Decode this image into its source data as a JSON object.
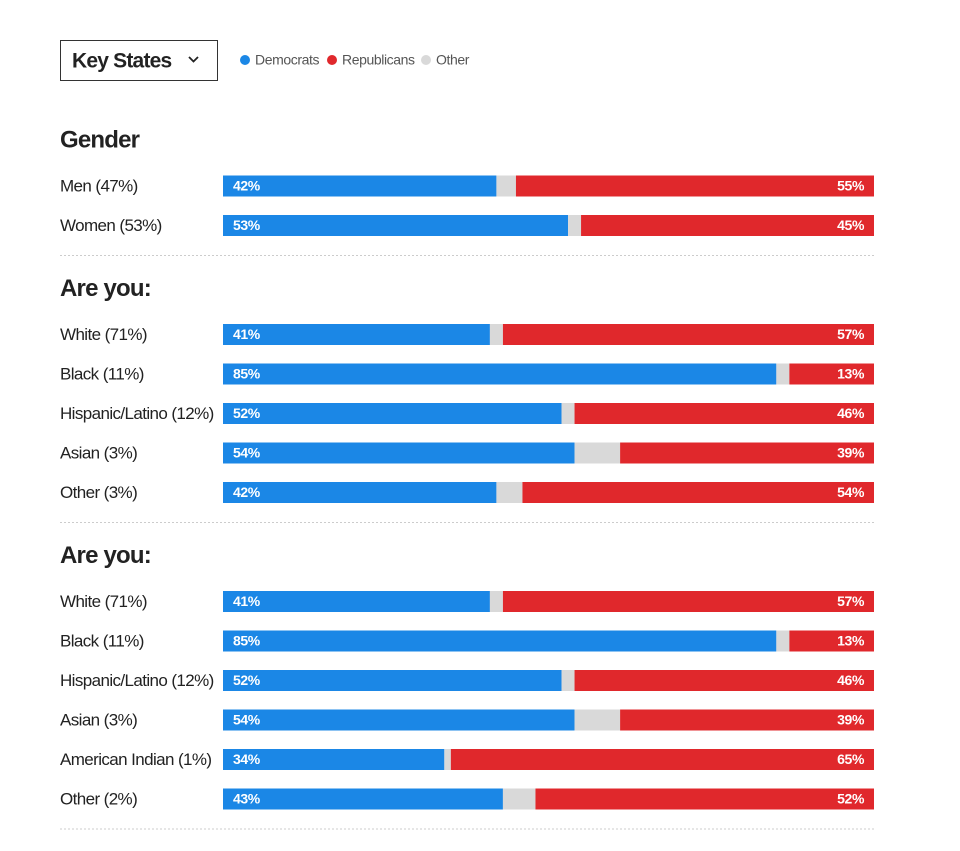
{
  "dropdown": "Key States",
  "chart_data": [
    {
      "type": "stacked-bar",
      "title": "Gender",
      "xlim": [
        0,
        100
      ],
      "categories": [
        "Men (47%)",
        "Women (53%)"
      ],
      "series": [
        {
          "name": "Democrats",
          "color": "#1b87e6",
          "values": [
            42,
            53
          ],
          "value_labels": [
            "42%",
            "53%"
          ]
        },
        {
          "name": "Republicans",
          "color": "#e0282c",
          "values": [
            55,
            45
          ],
          "value_labels": [
            "55%",
            "45%"
          ]
        },
        {
          "name": "Other",
          "color": "#d9d9d9",
          "values": [
            3,
            2
          ]
        }
      ]
    },
    {
      "type": "stacked-bar",
      "title": "Are you:",
      "xlim": [
        0,
        100
      ],
      "categories": [
        "White (71%)",
        "Black (11%)",
        "Hispanic/Latino (12%)",
        "Asian (3%)",
        "Other (3%)"
      ],
      "series": [
        {
          "name": "Democrats",
          "color": "#1b87e6",
          "values": [
            41,
            85,
            52,
            54,
            42
          ],
          "value_labels": [
            "41%",
            "85%",
            "52%",
            "54%",
            "42%"
          ]
        },
        {
          "name": "Republicans",
          "color": "#e0282c",
          "values": [
            57,
            13,
            46,
            39,
            54
          ],
          "value_labels": [
            "57%",
            "13%",
            "46%",
            "39%",
            "54%"
          ]
        },
        {
          "name": "Other",
          "color": "#d9d9d9",
          "values": [
            2,
            2,
            2,
            7,
            4
          ]
        }
      ]
    },
    {
      "type": "stacked-bar",
      "title": "Are you:",
      "xlim": [
        0,
        100
      ],
      "categories": [
        "White (71%)",
        "Black (11%)",
        "Hispanic/Latino (12%)",
        "Asian (3%)",
        "American Indian (1%)",
        "Other (2%)"
      ],
      "series": [
        {
          "name": "Democrats",
          "color": "#1b87e6",
          "values": [
            41,
            85,
            52,
            54,
            34,
            43
          ],
          "value_labels": [
            "41%",
            "85%",
            "52%",
            "54%",
            "34%",
            "43%"
          ]
        },
        {
          "name": "Republicans",
          "color": "#e0282c",
          "values": [
            57,
            13,
            46,
            39,
            65,
            52
          ],
          "value_labels": [
            "57%",
            "13%",
            "46%",
            "39%",
            "65%",
            "52%"
          ]
        },
        {
          "name": "Other",
          "color": "#d9d9d9",
          "values": [
            2,
            2,
            2,
            7,
            1,
            5
          ]
        }
      ]
    }
  ]
}
